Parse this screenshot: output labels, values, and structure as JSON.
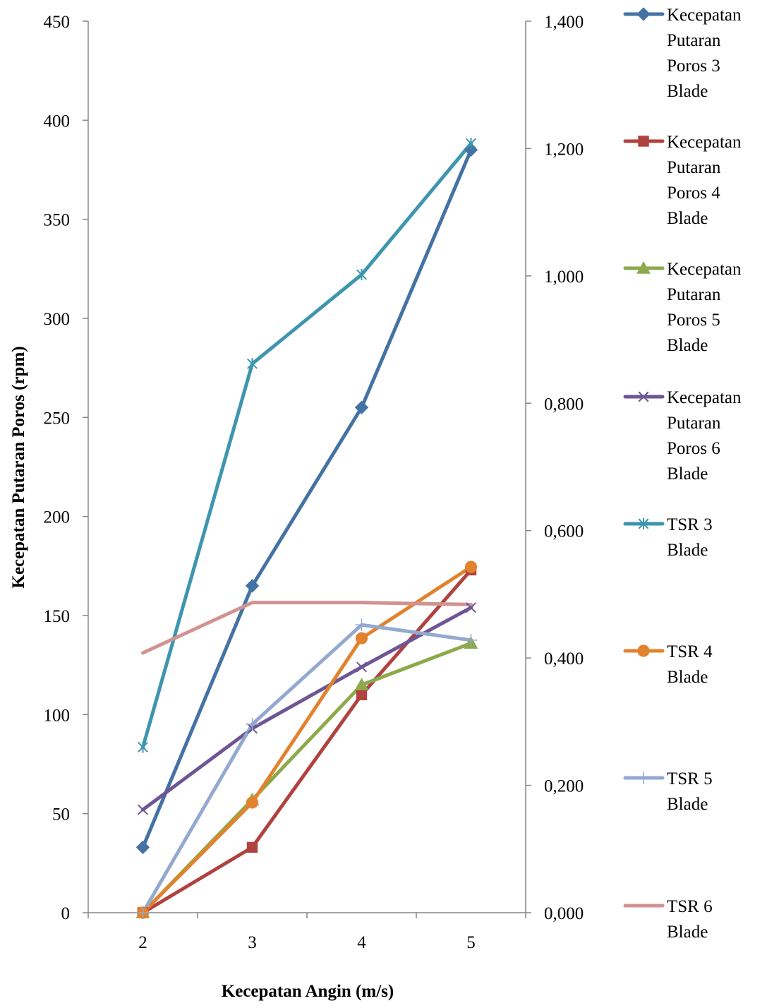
{
  "chart_data": {
    "type": "line",
    "title": "",
    "xlabel": "Kecepatan Angin (m/s)",
    "ylabel": "Kecepatan Putaran Poros (rpm)",
    "y2label": "",
    "categories": [
      "2",
      "3",
      "4",
      "5"
    ],
    "ylim": [
      0,
      450
    ],
    "y2lim": [
      0,
      1.4
    ],
    "y_ticks": [
      "0",
      "50",
      "100",
      "150",
      "200",
      "250",
      "300",
      "350",
      "400",
      "450"
    ],
    "y2_ticks": [
      "0,000",
      "0,200",
      "0,400",
      "0,600",
      "0,800",
      "1,000",
      "1,200",
      "1,400"
    ],
    "grid": false,
    "legend_position": "right",
    "series": [
      {
        "name": "Kecepatan Putaran Poros 3 Blade",
        "legend_lines": [
          "Kecepatan",
          "Putaran",
          "Poros 3",
          "Blade"
        ],
        "axis": "left",
        "color": "#4472a4",
        "marker": "diamond",
        "values": [
          33,
          165,
          255,
          385
        ]
      },
      {
        "name": "Kecepatan Putaran Poros 4 Blade",
        "legend_lines": [
          "Kecepatan",
          "Putaran",
          "Poros 4",
          "Blade"
        ],
        "axis": "left",
        "color": "#b0423f",
        "marker": "square",
        "values": [
          0,
          33,
          110,
          173
        ]
      },
      {
        "name": "Kecepatan Putaran Poros 5 Blade",
        "legend_lines": [
          "Kecepatan",
          "Putaran",
          "Poros 5",
          "Blade"
        ],
        "axis": "left",
        "color": "#8caa4b",
        "marker": "triangle",
        "values": [
          0,
          57,
          115,
          136
        ]
      },
      {
        "name": "Kecepatan Putaran Poros 6 Blade",
        "legend_lines": [
          "Kecepatan",
          "Putaran",
          "Poros 6",
          "Blade"
        ],
        "axis": "left",
        "color": "#6e5595",
        "marker": "x",
        "values": [
          52,
          93,
          124,
          154
        ]
      },
      {
        "name": "TSR 3 Blade",
        "legend_lines": [
          "TSR 3",
          "Blade"
        ],
        "axis": "right",
        "color": "#3d96ae",
        "marker": "star",
        "values": [
          0.26,
          0.862,
          1.002,
          1.208
        ]
      },
      {
        "name": "TSR 4 Blade",
        "legend_lines": [
          "TSR 4",
          "Blade"
        ],
        "axis": "right",
        "color": "#e1832e",
        "marker": "circle",
        "values": [
          0,
          0.173,
          0.431,
          0.543
        ]
      },
      {
        "name": "TSR 5 Blade",
        "legend_lines": [
          "TSR 5",
          "Blade"
        ],
        "axis": "right",
        "color": "#93a9cf",
        "marker": "plus",
        "values": [
          0,
          0.296,
          0.452,
          0.428
        ]
      },
      {
        "name": "TSR 6 Blade",
        "legend_lines": [
          "TSR 6",
          "Blade"
        ],
        "axis": "right",
        "color": "#d19392",
        "marker": "none",
        "values": [
          0.408,
          0.487,
          0.487,
          0.484
        ]
      }
    ]
  }
}
